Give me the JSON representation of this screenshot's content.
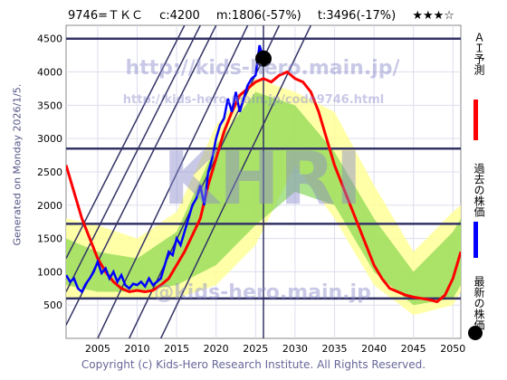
{
  "header": {
    "code": "9746=ＴＫＣ",
    "current": "c:4200",
    "min": "m:1806(-57%)",
    "target": "t:3496(-17%)",
    "stars": "★★★☆"
  },
  "side_label": "Generated on Monday 2026/1/5.",
  "watermarks": {
    "url_main": "http://kids-hero.main.jp/",
    "url_code": "http://kids-hero.main.jp/code9746.html",
    "brand": "KHRI",
    "mail": "@kids-hero.main.jp"
  },
  "legend": {
    "ai_forecast": "ＡＩ予測",
    "past_price": "過去の株価",
    "latest_price": "最新の株価"
  },
  "footer": "Copyright (c) Kids-Hero Research Institute. All Rights Reserved.",
  "colors": {
    "forecast": "#ff0000",
    "past": "#0000ff",
    "band": "#66cc33",
    "outer_band": "#ffff99",
    "grid_line": "#333366"
  },
  "chart_data": {
    "type": "line",
    "xlim": [
      2001,
      2051
    ],
    "ylim": [
      0,
      4700
    ],
    "x_ticks": [
      "2005",
      "2010",
      "2015",
      "2020",
      "2025",
      "2030",
      "2035",
      "2040",
      "2045",
      "2050"
    ],
    "y_ticks": [
      "500",
      "1000",
      "1500",
      "2000",
      "2500",
      "3000",
      "3500",
      "4000",
      "4500"
    ],
    "horizontal_lines": [
      4500,
      2850,
      1720,
      600
    ],
    "vertical_line": 2026,
    "latest_point": {
      "x": 2026.0,
      "y": 4200
    },
    "series": [
      {
        "key": "past",
        "x": [
          2001,
          2001.5,
          2002,
          2002.5,
          2003,
          2003.5,
          2004,
          2004.5,
          2005,
          2005.5,
          2006,
          2006.5,
          2007,
          2007.5,
          2008,
          2008.5,
          2009,
          2009.5,
          2010,
          2010.5,
          2011,
          2011.5,
          2012,
          2012.5,
          2013,
          2013.5,
          2014,
          2014.5,
          2015,
          2015.5,
          2016,
          2016.5,
          2017,
          2017.5,
          2018,
          2018.5,
          2019,
          2019.5,
          2020,
          2020.5,
          2021,
          2021.5,
          2022,
          2022.5,
          2023,
          2023.5,
          2024,
          2024.5,
          2025,
          2025.5,
          2026
        ],
        "values": [
          950,
          850,
          900,
          750,
          700,
          820,
          900,
          1000,
          1150,
          980,
          1050,
          900,
          1000,
          850,
          950,
          800,
          750,
          820,
          800,
          850,
          780,
          900,
          800,
          850,
          900,
          1100,
          1300,
          1250,
          1500,
          1400,
          1600,
          1800,
          2000,
          2100,
          2300,
          2000,
          2500,
          2700,
          3000,
          3200,
          3300,
          3600,
          3400,
          3700,
          3400,
          3600,
          3800,
          3900,
          3950,
          4400,
          4200
        ]
      },
      {
        "key": "forecast",
        "x": [
          2001,
          2002,
          2003,
          2004,
          2005,
          2006,
          2007,
          2008,
          2009,
          2010,
          2011,
          2012,
          2013,
          2014,
          2015,
          2016,
          2017,
          2018,
          2019,
          2020,
          2021,
          2022,
          2023,
          2024,
          2025,
          2026,
          2027,
          2028,
          2029,
          2030,
          2031,
          2032,
          2033,
          2034,
          2035,
          2036,
          2037,
          2038,
          2039,
          2040,
          2041,
          2042,
          2043,
          2044,
          2045,
          2046,
          2047,
          2048,
          2049,
          2050,
          2051
        ],
        "values": [
          2600,
          2200,
          1800,
          1500,
          1200,
          1000,
          850,
          750,
          700,
          720,
          700,
          720,
          800,
          900,
          1100,
          1300,
          1550,
          1800,
          2300,
          2700,
          3100,
          3400,
          3650,
          3750,
          3850,
          3900,
          3850,
          3950,
          4000,
          3900,
          3850,
          3700,
          3400,
          3000,
          2600,
          2300,
          2000,
          1700,
          1400,
          1100,
          900,
          750,
          700,
          650,
          620,
          600,
          580,
          550,
          650,
          900,
          1300
        ]
      }
    ],
    "band_x": [
      2001,
      2005,
      2010,
      2015,
      2020,
      2025,
      2030,
      2035,
      2040,
      2045,
      2050,
      2051
    ],
    "band_outer_upper": [
      1800,
      1700,
      1500,
      1900,
      3200,
      3900,
      3700,
      3400,
      2300,
      1300,
      1900,
      2000
    ],
    "band_outer_lower": [
      600,
      600,
      600,
      600,
      800,
      1400,
      2600,
      1800,
      800,
      350,
      500,
      700
    ],
    "band_inner_upper": [
      1500,
      1300,
      1200,
      1600,
      2900,
      3700,
      3500,
      2800,
      1800,
      1000,
      1600,
      1800
    ],
    "band_inner_lower": [
      800,
      700,
      700,
      800,
      1100,
      1700,
      2200,
      2000,
      1000,
      500,
      600,
      800
    ],
    "diagonals": [
      {
        "from": [
          2001,
          200
        ],
        "to": [
          2020,
          4700
        ]
      },
      {
        "from": [
          2001,
          700
        ],
        "to": [
          2018,
          4700
        ]
      },
      {
        "from": [
          2001,
          1200
        ],
        "to": [
          2016,
          4700
        ]
      },
      {
        "from": [
          2005,
          0
        ],
        "to": [
          2024,
          4700
        ]
      },
      {
        "from": [
          2009,
          0
        ],
        "to": [
          2028,
          4700
        ]
      },
      {
        "from": [
          2013,
          0
        ],
        "to": [
          2032,
          4700
        ]
      }
    ]
  }
}
